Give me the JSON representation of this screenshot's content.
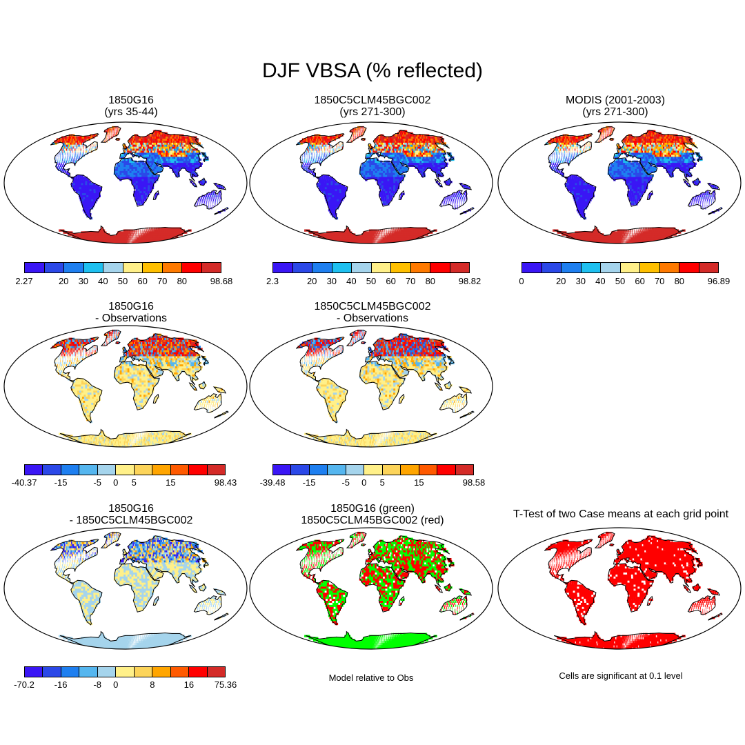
{
  "title": "DJF VBSA (% reflected)",
  "panels": [
    {
      "id": "p1",
      "title": [
        "1850G16",
        "(yrs 35-44)"
      ],
      "scheme": "abs",
      "palette": "div"
    },
    {
      "id": "p2",
      "title": [
        "1850C5CLM45BGC002",
        "(yrs 271-300)"
      ],
      "scheme": "abs",
      "palette": "div"
    },
    {
      "id": "p3",
      "title": [
        "MODIS (2001-2003)",
        "(yrs 271-300)"
      ],
      "scheme": "obs",
      "palette": "div"
    },
    {
      "id": "p4",
      "title": [
        "1850G16",
        "- Observations"
      ],
      "scheme": "diff",
      "palette": "div"
    },
    {
      "id": "p5",
      "title": [
        "1850C5CLM45BGC002",
        "- Observations"
      ],
      "scheme": "diff2",
      "palette": "div"
    },
    {
      "id": "p6",
      "title": [
        "1850G16",
        "- 1850C5CLM45BGC002"
      ],
      "scheme": "diff3",
      "palette": "div"
    },
    {
      "id": "p7",
      "title": [
        "1850G16 (green)",
        "1850C5CLM45BGC002 (red)"
      ],
      "scheme": "gr",
      "palette": "gr"
    },
    {
      "id": "p8",
      "title": [
        "T-Test of two Case means at each grid point"
      ],
      "scheme": "tt",
      "palette": "tt"
    }
  ],
  "colorbars": [
    {
      "id": "cb1",
      "labels": [
        "2.27",
        "20",
        "30",
        "40",
        "50",
        "60",
        "70",
        "80",
        "98.68"
      ]
    },
    {
      "id": "cb2",
      "labels": [
        "2.3",
        "20",
        "30",
        "40",
        "50",
        "60",
        "70",
        "80",
        "98.82"
      ]
    },
    {
      "id": "cb3",
      "labels": [
        "0",
        "20",
        "30",
        "40",
        "50",
        "60",
        "70",
        "80",
        "96.89"
      ]
    },
    {
      "id": "cb4",
      "labels": [
        "-40.37",
        "-15",
        "-5",
        "0",
        "5",
        "15",
        "98.43"
      ]
    },
    {
      "id": "cb5",
      "labels": [
        "-39.48",
        "-15",
        "-5",
        "0",
        "5",
        "15",
        "98.58"
      ]
    },
    {
      "id": "cb6",
      "labels": [
        "-70.2",
        "-16",
        "-8",
        "0",
        "8",
        "16",
        "75.36"
      ]
    }
  ],
  "captions": {
    "model_relative": "Model relative to Obs",
    "significance": "Cells are significant at 0.1 level"
  },
  "colors": {
    "abs_palette": [
      "#3a16f5",
      "#2b48e8",
      "#1e7ff0",
      "#1ec0f0",
      "#a5d4ec",
      "#fff089",
      "#ffc000",
      "#ff7a00",
      "#ff0000",
      "#d42b28"
    ],
    "diff_palette": [
      "#3a16f5",
      "#2b48e8",
      "#1e7ff0",
      "#55b6ef",
      "#a5d4ec",
      "#fff089",
      "#fcd45a",
      "#ffa500",
      "#ff5a00",
      "#ff0000",
      "#d42b28"
    ],
    "green": "#00ff00",
    "red": "#ff0000",
    "white": "#ffffff"
  }
}
